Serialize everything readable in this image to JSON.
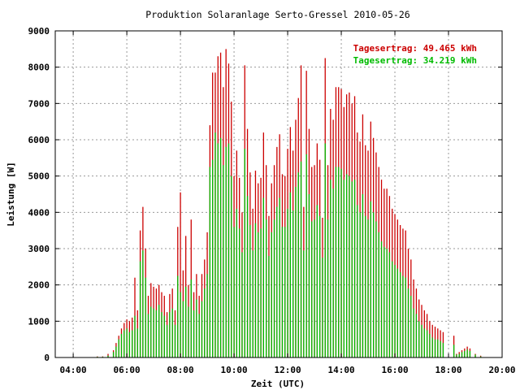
{
  "chart_data": {
    "type": "bar",
    "title": "Produktion Solaranlage Serto-Gressel 2010-05-26",
    "xlabel": "Zeit (UTC)",
    "ylabel": "Leistung [W]",
    "xlim": [
      3.33,
      20.0
    ],
    "ylim": [
      0,
      9000
    ],
    "yticks": [
      0,
      1000,
      2000,
      3000,
      4000,
      5000,
      6000,
      7000,
      8000,
      9000
    ],
    "xticks": [
      {
        "value": 4,
        "label": "04:00"
      },
      {
        "value": 6,
        "label": "06:00"
      },
      {
        "value": 8,
        "label": "08:00"
      },
      {
        "value": 10,
        "label": "10:00"
      },
      {
        "value": 12,
        "label": "12:00"
      },
      {
        "value": 14,
        "label": "14:00"
      },
      {
        "value": 16,
        "label": "16:00"
      },
      {
        "value": 18,
        "label": "18:00"
      },
      {
        "value": 20,
        "label": "20:00"
      }
    ],
    "grid": true,
    "legend_position": "top-right",
    "series": [
      {
        "label": "Tagesertrag: 49.465 kWh",
        "color": "#cc0000",
        "x": [
          4.9,
          5.1,
          5.3,
          5.5,
          5.6,
          5.7,
          5.8,
          5.9,
          6.0,
          6.1,
          6.2,
          6.3,
          6.4,
          6.5,
          6.6,
          6.7,
          6.8,
          6.9,
          7.0,
          7.1,
          7.2,
          7.3,
          7.4,
          7.5,
          7.6,
          7.7,
          7.8,
          7.9,
          8.0,
          8.1,
          8.2,
          8.3,
          8.4,
          8.5,
          8.6,
          8.7,
          8.8,
          8.9,
          9.0,
          9.1,
          9.2,
          9.3,
          9.4,
          9.5,
          9.6,
          9.7,
          9.8,
          9.9,
          10.0,
          10.1,
          10.2,
          10.3,
          10.4,
          10.5,
          10.6,
          10.7,
          10.8,
          10.9,
          11.0,
          11.1,
          11.2,
          11.3,
          11.4,
          11.5,
          11.6,
          11.7,
          11.8,
          11.9,
          12.0,
          12.1,
          12.2,
          12.3,
          12.4,
          12.5,
          12.6,
          12.7,
          12.8,
          12.9,
          13.0,
          13.1,
          13.2,
          13.3,
          13.4,
          13.5,
          13.6,
          13.7,
          13.8,
          13.9,
          14.0,
          14.1,
          14.2,
          14.3,
          14.4,
          14.5,
          14.6,
          14.7,
          14.8,
          14.9,
          15.0,
          15.1,
          15.2,
          15.3,
          15.4,
          15.5,
          15.6,
          15.7,
          15.8,
          15.9,
          16.0,
          16.1,
          16.2,
          16.3,
          16.4,
          16.5,
          16.6,
          16.7,
          16.8,
          16.9,
          17.0,
          17.1,
          17.2,
          17.3,
          17.4,
          17.5,
          17.6,
          17.7,
          17.8,
          18.2,
          18.3,
          18.4,
          18.5,
          18.6,
          18.7,
          18.8,
          19.0,
          19.2
        ],
        "values": [
          30,
          30,
          100,
          200,
          400,
          600,
          800,
          950,
          1050,
          1000,
          1100,
          2200,
          1300,
          3500,
          4150,
          3000,
          1700,
          2050,
          1950,
          1900,
          2000,
          1800,
          1700,
          1250,
          1750,
          1900,
          1300,
          3600,
          4550,
          2400,
          3350,
          2000,
          3800,
          1800,
          2300,
          1700,
          2300,
          2700,
          3450,
          6400,
          7850,
          7850,
          8300,
          8400,
          7450,
          8500,
          8100,
          7050,
          5000,
          5700,
          4950,
          4000,
          8050,
          6300,
          5100,
          4100,
          5150,
          4800,
          4950,
          6200,
          5300,
          3900,
          4800,
          5300,
          5800,
          6150,
          5050,
          5000,
          5750,
          6350,
          5700,
          6550,
          7150,
          8050,
          4150,
          7900,
          6300,
          5250,
          5300,
          5900,
          5450,
          3850,
          8250,
          5300,
          6850,
          6550,
          7450,
          7450,
          7400,
          6900,
          7250,
          7300,
          7000,
          7200,
          6200,
          5950,
          6700,
          5850,
          5700,
          6500,
          6050,
          5650,
          5250,
          4900,
          4650,
          4650,
          4450,
          4100,
          3950,
          3800,
          3650,
          3550,
          3500,
          3000,
          2700,
          2150,
          1900,
          1600,
          1450,
          1300,
          1200,
          1000,
          900,
          850,
          800,
          750,
          700,
          600,
          100,
          150,
          200,
          250,
          300,
          250,
          100,
          50
        ]
      },
      {
        "label": "Tagesertrag: 34.219 kWh",
        "color": "#00bb00",
        "x": [
          4.9,
          5.1,
          5.3,
          5.5,
          5.6,
          5.7,
          5.8,
          5.9,
          6.0,
          6.1,
          6.2,
          6.3,
          6.4,
          6.5,
          6.6,
          6.7,
          6.8,
          6.9,
          7.0,
          7.1,
          7.2,
          7.3,
          7.4,
          7.5,
          7.6,
          7.7,
          7.8,
          7.9,
          8.0,
          8.1,
          8.2,
          8.3,
          8.4,
          8.5,
          8.6,
          8.7,
          8.8,
          8.9,
          9.0,
          9.1,
          9.2,
          9.3,
          9.4,
          9.5,
          9.6,
          9.7,
          9.8,
          9.9,
          10.0,
          10.1,
          10.2,
          10.3,
          10.4,
          10.5,
          10.6,
          10.7,
          10.8,
          10.9,
          11.0,
          11.1,
          11.2,
          11.3,
          11.4,
          11.5,
          11.6,
          11.7,
          11.8,
          11.9,
          12.0,
          12.1,
          12.2,
          12.3,
          12.4,
          12.5,
          12.6,
          12.7,
          12.8,
          12.9,
          13.0,
          13.1,
          13.2,
          13.3,
          13.4,
          13.5,
          13.6,
          13.7,
          13.8,
          13.9,
          14.0,
          14.1,
          14.2,
          14.3,
          14.4,
          14.5,
          14.6,
          14.7,
          14.8,
          14.9,
          15.0,
          15.1,
          15.2,
          15.3,
          15.4,
          15.5,
          15.6,
          15.7,
          15.8,
          15.9,
          16.0,
          16.1,
          16.2,
          16.3,
          16.4,
          16.5,
          16.6,
          16.7,
          16.8,
          16.9,
          17.0,
          17.1,
          17.2,
          17.3,
          17.4,
          17.5,
          17.6,
          17.7,
          17.8,
          18.2,
          18.3,
          18.4,
          18.5,
          18.6,
          18.7,
          18.8,
          19.0,
          19.2
        ],
        "values": [
          20,
          20,
          50,
          150,
          300,
          500,
          650,
          750,
          800,
          700,
          750,
          1150,
          800,
          2650,
          2950,
          2200,
          1200,
          1400,
          1350,
          1300,
          1450,
          1250,
          1150,
          900,
          1250,
          1350,
          900,
          2250,
          1800,
          1550,
          1950,
          1400,
          2150,
          1300,
          1600,
          1200,
          1550,
          1900,
          2300,
          5250,
          5450,
          6200,
          5900,
          6050,
          5300,
          5800,
          5900,
          5000,
          3600,
          4100,
          3550,
          2900,
          5750,
          4450,
          3650,
          2950,
          3700,
          3450,
          3550,
          4400,
          3800,
          2800,
          3450,
          3800,
          4150,
          4400,
          3600,
          3600,
          4100,
          4550,
          4050,
          4700,
          5100,
          5400,
          2950,
          5600,
          4500,
          3750,
          3800,
          4200,
          3900,
          2750,
          5900,
          3800,
          4900,
          4650,
          5250,
          5250,
          5200,
          4900,
          5050,
          5000,
          4850,
          4900,
          4200,
          4000,
          4500,
          3900,
          3800,
          4300,
          4000,
          3750,
          3450,
          3200,
          3050,
          3000,
          2900,
          2650,
          2550,
          2450,
          2350,
          2250,
          2200,
          1900,
          1700,
          1350,
          1200,
          1000,
          900,
          800,
          750,
          650,
          550,
          500,
          500,
          450,
          400,
          350,
          80,
          100,
          150,
          180,
          220,
          180,
          80,
          30
        ]
      }
    ]
  }
}
